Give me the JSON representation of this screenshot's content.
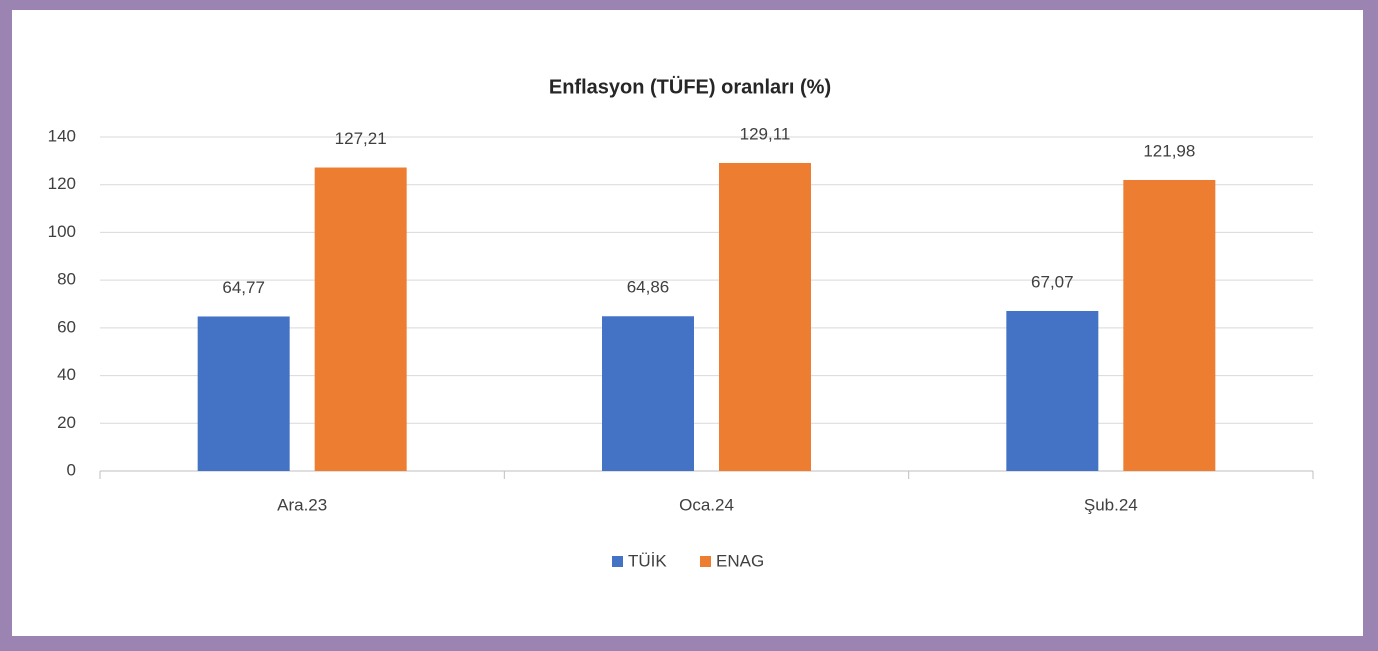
{
  "chart_data": {
    "type": "bar",
    "title": "Enflasyon (TÜFE) oranları (%)",
    "categories": [
      "Ara.23",
      "Oca.24",
      "Şub.24"
    ],
    "series": [
      {
        "name": "TÜİK",
        "color": "#4472c4",
        "values": [
          64.77,
          64.86,
          67.07
        ],
        "value_labels": [
          "64,77",
          "64,86",
          "67,07"
        ]
      },
      {
        "name": "ENAG",
        "color": "#ed7d31",
        "values": [
          127.21,
          129.11,
          121.98
        ],
        "value_labels": [
          "127,21",
          "129,11",
          "121,98"
        ]
      }
    ],
    "ylim": [
      0,
      140
    ],
    "yticks": [
      0,
      20,
      40,
      60,
      80,
      100,
      120,
      140
    ],
    "grid": true,
    "legend": "bottom"
  }
}
